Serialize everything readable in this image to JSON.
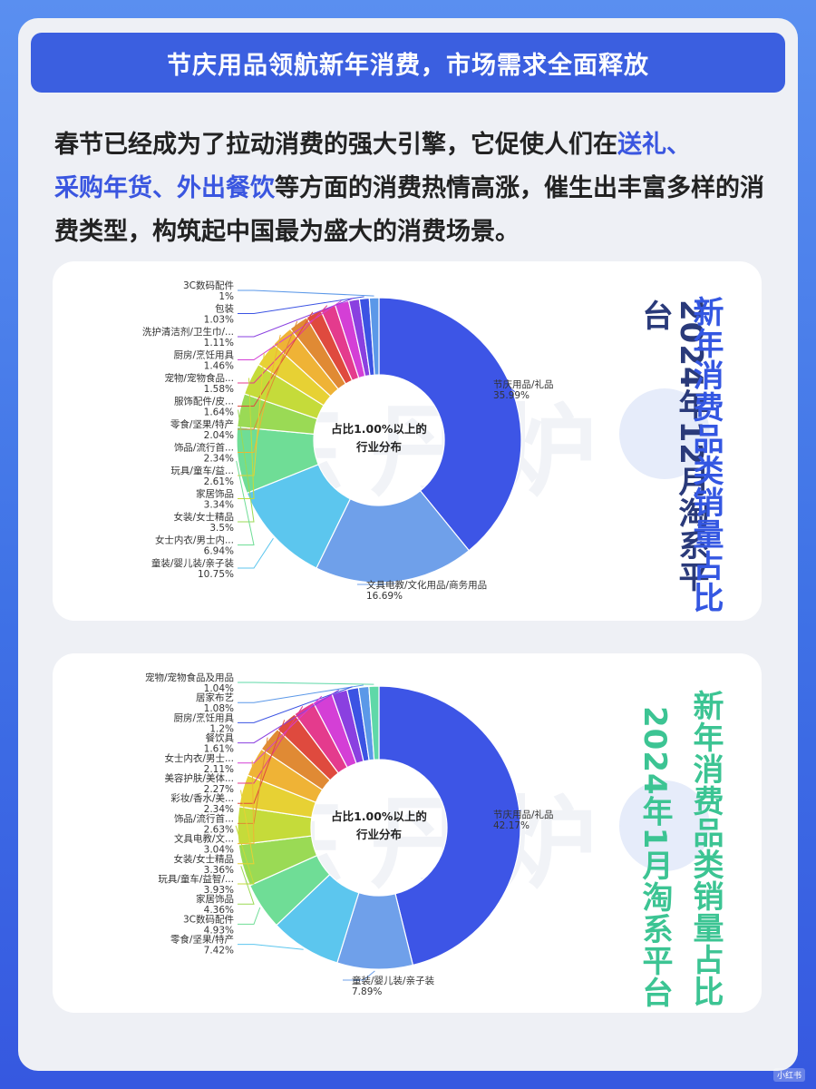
{
  "header": {
    "title": "节庆用品领航新年消费，市场需求全面释放"
  },
  "intro": {
    "part1": "春节已经成为了拉动消费的强大引擎，它促使人们在",
    "hl1": "送礼、",
    "hl2": "采购年货、",
    "hl3": "外出餐饮",
    "part2": "等方面的消费热情高涨，催生出丰富多样的消费类型，构筑起中国最为盛大的消费场景。"
  },
  "watermark": "炼丹炉",
  "corner_mark": "小红书",
  "colors": {
    "banner": "#3b5fe0",
    "highlight": "#3a56e0",
    "title_blue": "#3457e2",
    "title_green": "#3cc493"
  },
  "chart_data": [
    {
      "type": "pie",
      "variant": "donut",
      "center_label": [
        "占比1.00%以上的",
        "行业分布"
      ],
      "side_title_right": "新年消费品类销量占比",
      "side_title_left": "2024年12月淘系平台",
      "side_title_right_color": "#3457e2",
      "side_title_left_color": "#2a3a7a",
      "slices": [
        {
          "label": "节庆用品/礼品",
          "value": 35.99,
          "value_text": "35.99%",
          "color": "#3d55e6"
        },
        {
          "label": "文具电教/文化用品/商务用品",
          "value": 16.69,
          "value_text": "16.69%",
          "color": "#6fa0ea"
        },
        {
          "label": "童装/婴儿装/亲子装",
          "value": 10.75,
          "value_text": "10.75%",
          "color": "#5cc6ee"
        },
        {
          "label": "女士内衣/男士内...",
          "value": 6.94,
          "value_text": "6.94%",
          "color": "#6fdd96"
        },
        {
          "label": "女装/女士精品",
          "value": 3.5,
          "value_text": "3.5%",
          "color": "#9ada55"
        },
        {
          "label": "家居饰品",
          "value": 3.34,
          "value_text": "3.34%",
          "color": "#c5db3a"
        },
        {
          "label": "玩具/童车/益...",
          "value": 2.61,
          "value_text": "2.61%",
          "color": "#e7d134"
        },
        {
          "label": "饰品/流行首...",
          "value": 2.34,
          "value_text": "2.34%",
          "color": "#efb336"
        },
        {
          "label": "零食/坚果/特产",
          "value": 2.04,
          "value_text": "2.04%",
          "color": "#e08a34"
        },
        {
          "label": "服饰配件/皮...",
          "value": 1.64,
          "value_text": "1.64%",
          "color": "#df4a3e"
        },
        {
          "label": "宠物/宠物食品...",
          "value": 1.58,
          "value_text": "1.58%",
          "color": "#e43b8d"
        },
        {
          "label": "厨房/烹饪用具",
          "value": 1.46,
          "value_text": "1.46%",
          "color": "#d43fd6"
        },
        {
          "label": "洗护清洁剂/卫生巾/...",
          "value": 1.11,
          "value_text": "1.11%",
          "color": "#8a40e0"
        },
        {
          "label": "包装",
          "value": 1.03,
          "value_text": "1.03%",
          "color": "#3b53e3"
        },
        {
          "label": "3C数码配件",
          "value": 1.0,
          "value_text": "1%",
          "color": "#5b98e8"
        }
      ]
    },
    {
      "type": "pie",
      "variant": "donut",
      "center_label": [
        "占比1.00%以上的",
        "行业分布"
      ],
      "side_title_right": "新年消费品类销量占比",
      "side_title_left": "2024年1月淘系平台",
      "side_title_right_color": "#3cc493",
      "side_title_left_color": "#3cc493",
      "slices": [
        {
          "label": "节庆用品/礼品",
          "value": 42.17,
          "value_text": "42.17%",
          "color": "#3d55e6"
        },
        {
          "label": "童装/婴儿装/亲子装",
          "value": 7.89,
          "value_text": "7.89%",
          "color": "#6fa0ea"
        },
        {
          "label": "零食/坚果/特产",
          "value": 7.42,
          "value_text": "7.42%",
          "color": "#5cc6ee"
        },
        {
          "label": "3C数码配件",
          "value": 4.93,
          "value_text": "4.93%",
          "color": "#6fdd96"
        },
        {
          "label": "家居饰品",
          "value": 4.36,
          "value_text": "4.36%",
          "color": "#9ada55"
        },
        {
          "label": "玩具/童车/益智/...",
          "value": 3.93,
          "value_text": "3.93%",
          "color": "#c5db3a"
        },
        {
          "label": "女装/女士精品",
          "value": 3.36,
          "value_text": "3.36%",
          "color": "#e7d134"
        },
        {
          "label": "文具电教/文...",
          "value": 3.04,
          "value_text": "3.04%",
          "color": "#efb336"
        },
        {
          "label": "饰品/流行首...",
          "value": 2.63,
          "value_text": "2.63%",
          "color": "#e08a34"
        },
        {
          "label": "彩妆/香水/美...",
          "value": 2.34,
          "value_text": "2.34%",
          "color": "#df4a3e"
        },
        {
          "label": "美容护肤/美体...",
          "value": 2.27,
          "value_text": "2.27%",
          "color": "#e43b8d"
        },
        {
          "label": "女士内衣/男士...",
          "value": 2.11,
          "value_text": "2.11%",
          "color": "#d43fd6"
        },
        {
          "label": "餐饮具",
          "value": 1.61,
          "value_text": "1.61%",
          "color": "#8a40e0"
        },
        {
          "label": "厨房/烹饪用具",
          "value": 1.2,
          "value_text": "1.2%",
          "color": "#3b53e3"
        },
        {
          "label": "居家布艺",
          "value": 1.08,
          "value_text": "1.08%",
          "color": "#5b98e8"
        },
        {
          "label": "宠物/宠物食品及用品",
          "value": 1.04,
          "value_text": "1.04%",
          "color": "#5fd8a8"
        }
      ]
    }
  ]
}
